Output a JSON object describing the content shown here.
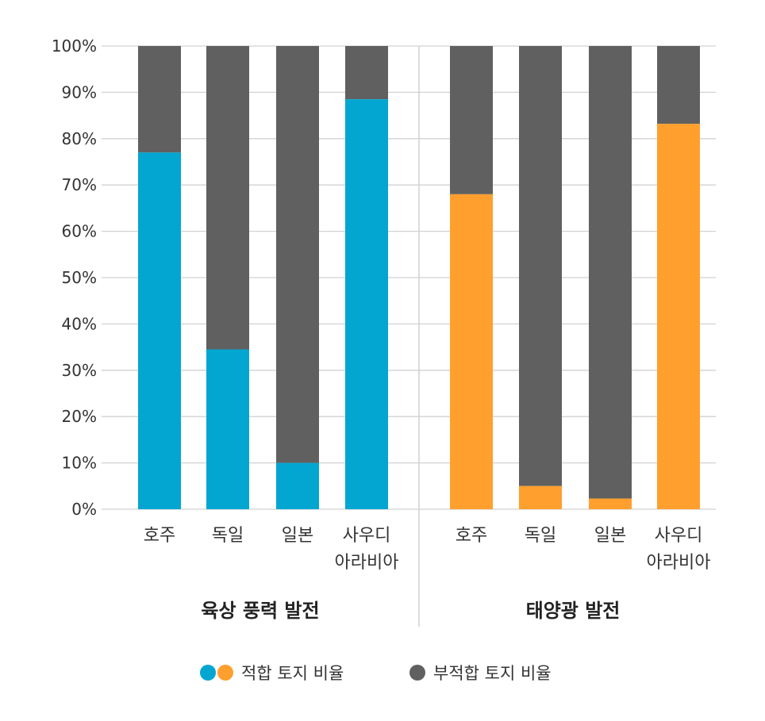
{
  "chart_data": {
    "type": "bar",
    "stacked": true,
    "y_axis": {
      "ylim": [
        0,
        100
      ],
      "ticks": [
        "0%",
        "10%",
        "20%",
        "30%",
        "40%",
        "50%",
        "60%",
        "70%",
        "80%",
        "90%",
        "100%"
      ],
      "grid": true
    },
    "groups": [
      {
        "label": "육상 풍력 발전",
        "suitable_color": "#03A6D1",
        "categories": [
          {
            "label": [
              "호주"
            ],
            "suitable": 77,
            "unsuitable": 23
          },
          {
            "label": [
              "독일"
            ],
            "suitable": 34.5,
            "unsuitable": 65.5
          },
          {
            "label": [
              "일본"
            ],
            "suitable": 10,
            "unsuitable": 90
          },
          {
            "label": [
              "사우디",
              "아라비아"
            ],
            "suitable": 88.5,
            "unsuitable": 11.5
          }
        ]
      },
      {
        "label": "태양광 발전",
        "suitable_color": "#FF9F2E",
        "categories": [
          {
            "label": [
              "호주"
            ],
            "suitable": 68,
            "unsuitable": 32
          },
          {
            "label": [
              "독일"
            ],
            "suitable": 5,
            "unsuitable": 95
          },
          {
            "label": [
              "일본"
            ],
            "suitable": 2.3,
            "unsuitable": 97.7
          },
          {
            "label": [
              "사우디",
              "아라비아"
            ],
            "suitable": 83.2,
            "unsuitable": 16.8
          }
        ]
      }
    ],
    "series": [
      {
        "name": "적합 토지 비율",
        "colors": [
          "#03A6D1",
          "#FF9F2E"
        ]
      },
      {
        "name": "부적합 토지 비율",
        "colors": [
          "#606060"
        ]
      }
    ],
    "unsuitable_color": "#606060",
    "legend": {
      "position": "bottom-center"
    }
  }
}
